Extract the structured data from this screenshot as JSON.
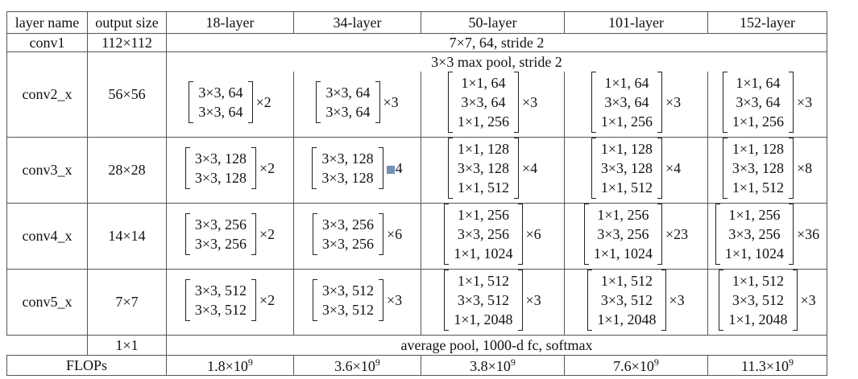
{
  "headers": [
    "layer name",
    "output size",
    "18-layer",
    "34-layer",
    "50-layer",
    "101-layer",
    "152-layer"
  ],
  "conv1": {
    "name": "conv1",
    "size": "112×112",
    "spec": "7×7, 64, stride 2"
  },
  "pool": {
    "spec": "3×3 max pool, stride 2"
  },
  "blocks": [
    {
      "name": "conv2_x",
      "size": "56×56",
      "cells": [
        {
          "lines": [
            "3×3, 64",
            "3×3, 64"
          ],
          "mult": "×2"
        },
        {
          "lines": [
            "3×3, 64",
            "3×3, 64"
          ],
          "mult": "×3"
        },
        {
          "lines": [
            "1×1, 64",
            "3×3, 64",
            "1×1, 256"
          ],
          "mult": "×3"
        },
        {
          "lines": [
            "1×1, 64",
            "3×3, 64",
            "1×1, 256"
          ],
          "mult": "×3"
        },
        {
          "lines": [
            "1×1, 64",
            "3×3, 64",
            "1×1, 256"
          ],
          "mult": "×3"
        }
      ]
    },
    {
      "name": "conv3_x",
      "size": "28×28",
      "cells": [
        {
          "lines": [
            "3×3, 128",
            "3×3, 128"
          ],
          "mult": "×2"
        },
        {
          "lines": [
            "3×3, 128",
            "3×3, 128"
          ],
          "mult": "4",
          "marked": true
        },
        {
          "lines": [
            "1×1, 128",
            "3×3, 128",
            "1×1, 512"
          ],
          "mult": "×4"
        },
        {
          "lines": [
            "1×1, 128",
            "3×3, 128",
            "1×1, 512"
          ],
          "mult": "×4"
        },
        {
          "lines": [
            "1×1, 128",
            "3×3, 128",
            "1×1, 512"
          ],
          "mult": "×8"
        }
      ]
    },
    {
      "name": "conv4_x",
      "size": "14×14",
      "cells": [
        {
          "lines": [
            "3×3, 256",
            "3×3, 256"
          ],
          "mult": "×2"
        },
        {
          "lines": [
            "3×3, 256",
            "3×3, 256"
          ],
          "mult": "×6"
        },
        {
          "lines": [
            "1×1, 256",
            "3×3, 256",
            "1×1, 1024"
          ],
          "mult": "×6"
        },
        {
          "lines": [
            "1×1, 256",
            "3×3, 256",
            "1×1, 1024"
          ],
          "mult": "×23"
        },
        {
          "lines": [
            "1×1, 256",
            "3×3, 256",
            "1×1, 1024"
          ],
          "mult": "×36"
        }
      ]
    },
    {
      "name": "conv5_x",
      "size": "7×7",
      "cells": [
        {
          "lines": [
            "3×3, 512",
            "3×3, 512"
          ],
          "mult": "×2"
        },
        {
          "lines": [
            "3×3, 512",
            "3×3, 512"
          ],
          "mult": "×3"
        },
        {
          "lines": [
            "1×1, 512",
            "3×3, 512",
            "1×1, 2048"
          ],
          "mult": "×3"
        },
        {
          "lines": [
            "1×1, 512",
            "3×3, 512",
            "1×1, 2048"
          ],
          "mult": "×3"
        },
        {
          "lines": [
            "1×1, 512",
            "3×3, 512",
            "1×1, 2048"
          ],
          "mult": "×3"
        }
      ]
    }
  ],
  "avg": {
    "size": "1×1",
    "spec": "average pool, 1000-d fc, softmax"
  },
  "flops": {
    "label": "FLOPs",
    "values": [
      {
        "mant": "1.8×10",
        "exp": "9"
      },
      {
        "mant": "3.6×10",
        "exp": "9"
      },
      {
        "mant": "3.8×10",
        "exp": "9"
      },
      {
        "mant": "7.6×10",
        "exp": "9"
      },
      {
        "mant": "11.3×10",
        "exp": "9"
      }
    ]
  }
}
